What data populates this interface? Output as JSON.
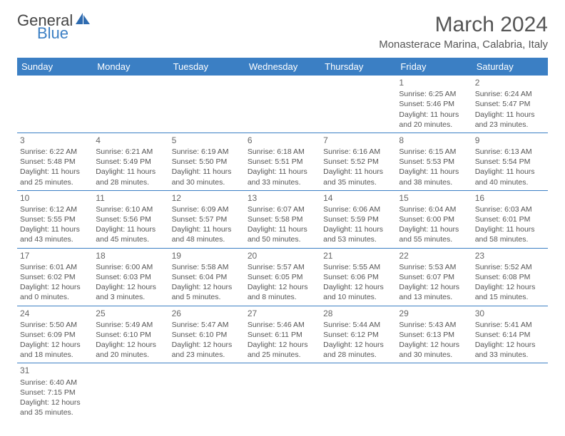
{
  "logo": {
    "general": "General",
    "blue": "Blue"
  },
  "title": "March 2024",
  "subtitle": "Monasterace Marina, Calabria, Italy",
  "colors": {
    "header_bg": "#3b7fc4",
    "header_text": "#ffffff",
    "border": "#3b7fc4",
    "body_text": "#555555",
    "title_text": "#555555"
  },
  "day_headers": [
    "Sunday",
    "Monday",
    "Tuesday",
    "Wednesday",
    "Thursday",
    "Friday",
    "Saturday"
  ],
  "weeks": [
    [
      null,
      null,
      null,
      null,
      null,
      {
        "n": "1",
        "sunrise": "Sunrise: 6:25 AM",
        "sunset": "Sunset: 5:46 PM",
        "daylight": "Daylight: 11 hours and 20 minutes."
      },
      {
        "n": "2",
        "sunrise": "Sunrise: 6:24 AM",
        "sunset": "Sunset: 5:47 PM",
        "daylight": "Daylight: 11 hours and 23 minutes."
      }
    ],
    [
      {
        "n": "3",
        "sunrise": "Sunrise: 6:22 AM",
        "sunset": "Sunset: 5:48 PM",
        "daylight": "Daylight: 11 hours and 25 minutes."
      },
      {
        "n": "4",
        "sunrise": "Sunrise: 6:21 AM",
        "sunset": "Sunset: 5:49 PM",
        "daylight": "Daylight: 11 hours and 28 minutes."
      },
      {
        "n": "5",
        "sunrise": "Sunrise: 6:19 AM",
        "sunset": "Sunset: 5:50 PM",
        "daylight": "Daylight: 11 hours and 30 minutes."
      },
      {
        "n": "6",
        "sunrise": "Sunrise: 6:18 AM",
        "sunset": "Sunset: 5:51 PM",
        "daylight": "Daylight: 11 hours and 33 minutes."
      },
      {
        "n": "7",
        "sunrise": "Sunrise: 6:16 AM",
        "sunset": "Sunset: 5:52 PM",
        "daylight": "Daylight: 11 hours and 35 minutes."
      },
      {
        "n": "8",
        "sunrise": "Sunrise: 6:15 AM",
        "sunset": "Sunset: 5:53 PM",
        "daylight": "Daylight: 11 hours and 38 minutes."
      },
      {
        "n": "9",
        "sunrise": "Sunrise: 6:13 AM",
        "sunset": "Sunset: 5:54 PM",
        "daylight": "Daylight: 11 hours and 40 minutes."
      }
    ],
    [
      {
        "n": "10",
        "sunrise": "Sunrise: 6:12 AM",
        "sunset": "Sunset: 5:55 PM",
        "daylight": "Daylight: 11 hours and 43 minutes."
      },
      {
        "n": "11",
        "sunrise": "Sunrise: 6:10 AM",
        "sunset": "Sunset: 5:56 PM",
        "daylight": "Daylight: 11 hours and 45 minutes."
      },
      {
        "n": "12",
        "sunrise": "Sunrise: 6:09 AM",
        "sunset": "Sunset: 5:57 PM",
        "daylight": "Daylight: 11 hours and 48 minutes."
      },
      {
        "n": "13",
        "sunrise": "Sunrise: 6:07 AM",
        "sunset": "Sunset: 5:58 PM",
        "daylight": "Daylight: 11 hours and 50 minutes."
      },
      {
        "n": "14",
        "sunrise": "Sunrise: 6:06 AM",
        "sunset": "Sunset: 5:59 PM",
        "daylight": "Daylight: 11 hours and 53 minutes."
      },
      {
        "n": "15",
        "sunrise": "Sunrise: 6:04 AM",
        "sunset": "Sunset: 6:00 PM",
        "daylight": "Daylight: 11 hours and 55 minutes."
      },
      {
        "n": "16",
        "sunrise": "Sunrise: 6:03 AM",
        "sunset": "Sunset: 6:01 PM",
        "daylight": "Daylight: 11 hours and 58 minutes."
      }
    ],
    [
      {
        "n": "17",
        "sunrise": "Sunrise: 6:01 AM",
        "sunset": "Sunset: 6:02 PM",
        "daylight": "Daylight: 12 hours and 0 minutes."
      },
      {
        "n": "18",
        "sunrise": "Sunrise: 6:00 AM",
        "sunset": "Sunset: 6:03 PM",
        "daylight": "Daylight: 12 hours and 3 minutes."
      },
      {
        "n": "19",
        "sunrise": "Sunrise: 5:58 AM",
        "sunset": "Sunset: 6:04 PM",
        "daylight": "Daylight: 12 hours and 5 minutes."
      },
      {
        "n": "20",
        "sunrise": "Sunrise: 5:57 AM",
        "sunset": "Sunset: 6:05 PM",
        "daylight": "Daylight: 12 hours and 8 minutes."
      },
      {
        "n": "21",
        "sunrise": "Sunrise: 5:55 AM",
        "sunset": "Sunset: 6:06 PM",
        "daylight": "Daylight: 12 hours and 10 minutes."
      },
      {
        "n": "22",
        "sunrise": "Sunrise: 5:53 AM",
        "sunset": "Sunset: 6:07 PM",
        "daylight": "Daylight: 12 hours and 13 minutes."
      },
      {
        "n": "23",
        "sunrise": "Sunrise: 5:52 AM",
        "sunset": "Sunset: 6:08 PM",
        "daylight": "Daylight: 12 hours and 15 minutes."
      }
    ],
    [
      {
        "n": "24",
        "sunrise": "Sunrise: 5:50 AM",
        "sunset": "Sunset: 6:09 PM",
        "daylight": "Daylight: 12 hours and 18 minutes."
      },
      {
        "n": "25",
        "sunrise": "Sunrise: 5:49 AM",
        "sunset": "Sunset: 6:10 PM",
        "daylight": "Daylight: 12 hours and 20 minutes."
      },
      {
        "n": "26",
        "sunrise": "Sunrise: 5:47 AM",
        "sunset": "Sunset: 6:10 PM",
        "daylight": "Daylight: 12 hours and 23 minutes."
      },
      {
        "n": "27",
        "sunrise": "Sunrise: 5:46 AM",
        "sunset": "Sunset: 6:11 PM",
        "daylight": "Daylight: 12 hours and 25 minutes."
      },
      {
        "n": "28",
        "sunrise": "Sunrise: 5:44 AM",
        "sunset": "Sunset: 6:12 PM",
        "daylight": "Daylight: 12 hours and 28 minutes."
      },
      {
        "n": "29",
        "sunrise": "Sunrise: 5:43 AM",
        "sunset": "Sunset: 6:13 PM",
        "daylight": "Daylight: 12 hours and 30 minutes."
      },
      {
        "n": "30",
        "sunrise": "Sunrise: 5:41 AM",
        "sunset": "Sunset: 6:14 PM",
        "daylight": "Daylight: 12 hours and 33 minutes."
      }
    ],
    [
      {
        "n": "31",
        "sunrise": "Sunrise: 6:40 AM",
        "sunset": "Sunset: 7:15 PM",
        "daylight": "Daylight: 12 hours and 35 minutes."
      },
      null,
      null,
      null,
      null,
      null,
      null
    ]
  ]
}
